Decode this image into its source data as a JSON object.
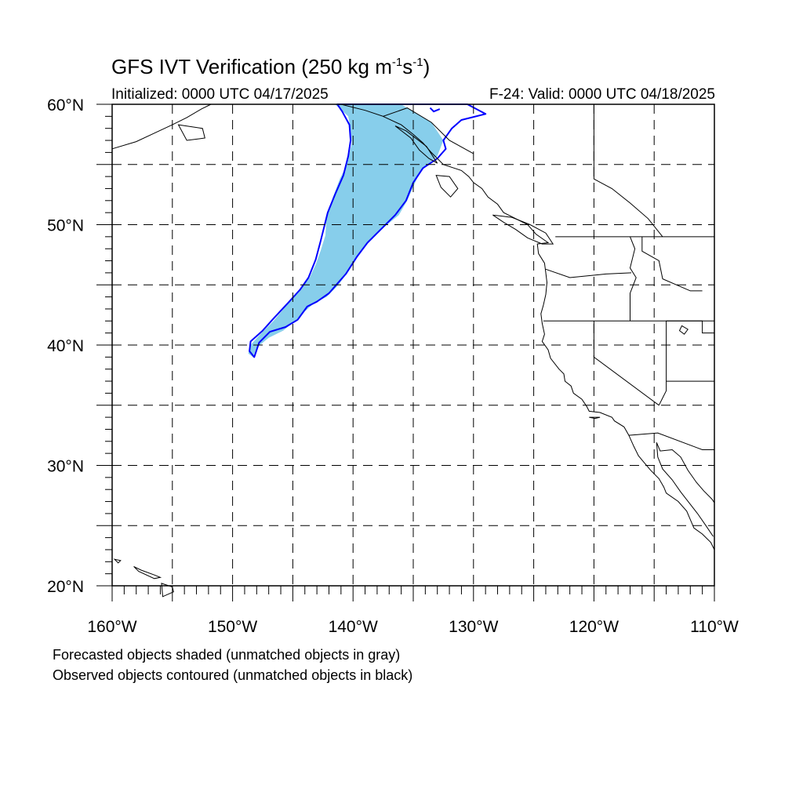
{
  "title": {
    "main": "GFS IVT Verification (250 kg m",
    "exp1": "-1",
    "mid": "s",
    "exp2": "-1",
    "close": ")"
  },
  "subtitle": {
    "initialized": "Initialized: 0000 UTC 04/17/2025",
    "valid": "F-24: Valid: 0000 UTC 04/18/2025"
  },
  "map": {
    "projection": "cylindrical equidistant",
    "lon_range": [
      -160,
      -110
    ],
    "lat_range": [
      20,
      60
    ],
    "grid_lines": "dashed, every 5 degrees",
    "lat_labels": [
      "20",
      "30",
      "40",
      "50",
      "60"
    ],
    "lat_suffix": "N",
    "lon_labels": [
      "160",
      "150",
      "140",
      "130",
      "120",
      "110"
    ],
    "lon_suffix": "W",
    "colors": {
      "forecast_fill_matched": "#87ceeb",
      "forecast_fill_unmatched": "#a0a0a0",
      "observed_contour_matched": "#0000ff",
      "observed_contour_unmatched": "#000000",
      "coastline": "#000000"
    },
    "objects": [
      {
        "kind": "forecast object (shaded, matched)",
        "lonlat": [
          [
            -141.5,
            60
          ],
          [
            -136,
            60
          ],
          [
            -133.5,
            58.5
          ],
          [
            -132.5,
            57
          ],
          [
            -133,
            55.7
          ],
          [
            -134.3,
            54.6
          ],
          [
            -134.8,
            53.6
          ],
          [
            -135.5,
            52
          ],
          [
            -136.2,
            50.8
          ],
          [
            -137.3,
            49.9
          ],
          [
            -138.5,
            48.9
          ],
          [
            -139.5,
            47.5
          ],
          [
            -140.5,
            46
          ],
          [
            -141.2,
            45
          ],
          [
            -142.2,
            44
          ],
          [
            -143.2,
            43.5
          ],
          [
            -144,
            42.8
          ],
          [
            -144.8,
            42
          ],
          [
            -145.8,
            41.2
          ],
          [
            -147,
            40.6
          ],
          [
            -148,
            39.8
          ],
          [
            -148.3,
            39
          ],
          [
            -148.7,
            39.3
          ],
          [
            -148.5,
            40
          ],
          [
            -147.8,
            40.8
          ],
          [
            -146.6,
            42
          ],
          [
            -145.6,
            43.2
          ],
          [
            -144.7,
            44.2
          ],
          [
            -143.6,
            45.6
          ],
          [
            -143.1,
            46.7
          ],
          [
            -142.7,
            47.8
          ],
          [
            -142.3,
            49.1
          ],
          [
            -142.2,
            50.6
          ],
          [
            -141.7,
            52.2
          ],
          [
            -141.1,
            53.8
          ],
          [
            -140.6,
            54.8
          ],
          [
            -140.3,
            55.9
          ],
          [
            -140.1,
            56.8
          ],
          [
            -140.2,
            57.9
          ],
          [
            -140.4,
            59
          ],
          [
            -141.5,
            60
          ]
        ]
      },
      {
        "kind": "observed object (contoured, matched)",
        "lonlat": [
          [
            -141.3,
            60
          ],
          [
            -130.5,
            60
          ],
          [
            -129,
            59.2
          ],
          [
            -131,
            58.7
          ],
          [
            -131.8,
            58
          ],
          [
            -132.5,
            57
          ],
          [
            -132.3,
            56.3
          ],
          [
            -133,
            55.5
          ],
          [
            -134.2,
            54.7
          ],
          [
            -135,
            53.5
          ],
          [
            -135.6,
            52
          ],
          [
            -136.5,
            50.8
          ],
          [
            -137.6,
            49.7
          ],
          [
            -138.8,
            48.5
          ],
          [
            -139.7,
            47.3
          ],
          [
            -140.6,
            45.9
          ],
          [
            -141.3,
            45.1
          ],
          [
            -142,
            44.3
          ],
          [
            -143,
            43.6
          ],
          [
            -143.8,
            43.2
          ],
          [
            -144.6,
            42.1
          ],
          [
            -145.6,
            41.5
          ],
          [
            -146.9,
            41.1
          ],
          [
            -147.8,
            40.2
          ],
          [
            -148.2,
            39
          ],
          [
            -148.6,
            39.5
          ],
          [
            -148.5,
            40.3
          ],
          [
            -147.5,
            41.2
          ],
          [
            -146.6,
            42.2
          ],
          [
            -145.3,
            43.6
          ],
          [
            -144.4,
            44.6
          ],
          [
            -143.7,
            45.6
          ],
          [
            -143.1,
            47.1
          ],
          [
            -142.7,
            48.6
          ],
          [
            -142.4,
            49.8
          ],
          [
            -142.1,
            51
          ],
          [
            -141.5,
            52.5
          ],
          [
            -140.8,
            54.1
          ],
          [
            -140.4,
            55.7
          ],
          [
            -140.2,
            57
          ],
          [
            -140.3,
            58.3
          ],
          [
            -140.9,
            59.4
          ],
          [
            -141.3,
            60
          ]
        ]
      }
    ]
  },
  "notes": {
    "line1": "Forecasted objects shaded (unmatched objects in gray)",
    "line2": "Observed objects contoured (unmatched objects in black)"
  }
}
